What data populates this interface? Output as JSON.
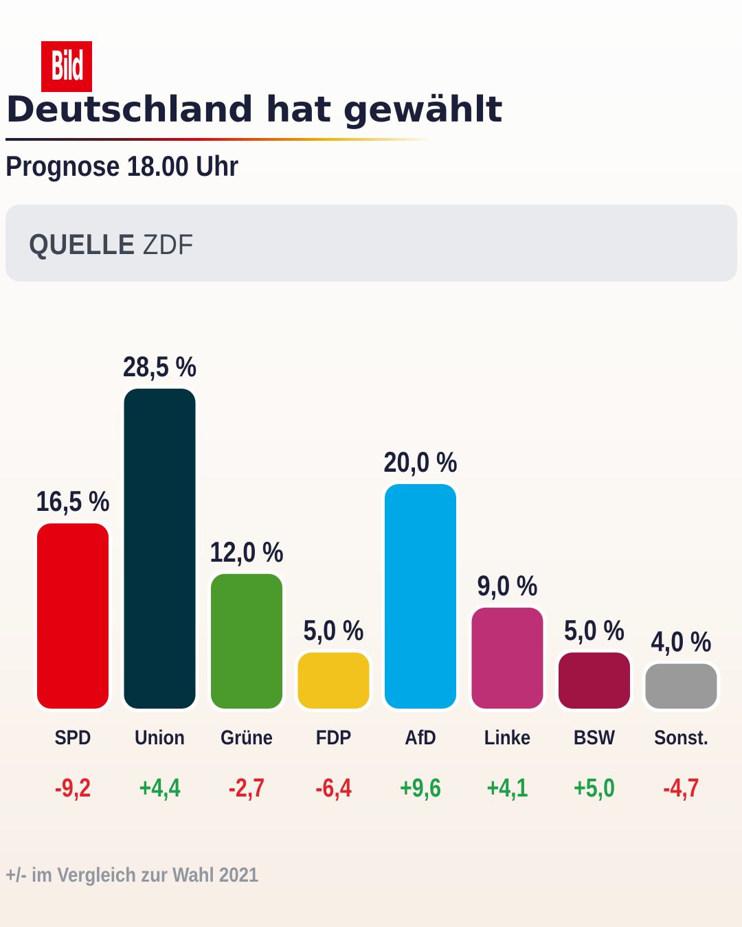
{
  "brand": {
    "logo_text": "Bild",
    "logo_color": "#e3000f"
  },
  "header": {
    "title": "Deutschland hat gewählt",
    "subtitle": "Prognose 18.00 Uhr"
  },
  "source": {
    "label": "QUELLE",
    "value": "ZDF"
  },
  "chart_data": {
    "type": "bar",
    "title": "Deutschland hat gewählt",
    "subtitle": "Prognose 18.00 Uhr",
    "xlabel": "",
    "ylabel": "",
    "ylim": [
      0,
      28.5
    ],
    "grid": false,
    "categories": [
      "SPD",
      "Union",
      "Grüne",
      "FDP",
      "AfD",
      "Linke",
      "BSW",
      "Sonst."
    ],
    "values": [
      16.5,
      28.5,
      12.0,
      5.0,
      20.0,
      9.0,
      5.0,
      4.0
    ],
    "value_labels": [
      "16,5 %",
      "28,5 %",
      "12,0 %",
      "5,0 %",
      "20,0 %",
      "9,0 %",
      "5,0 %",
      "4,0 %"
    ],
    "changes": [
      -9.2,
      4.4,
      -2.7,
      -6.4,
      9.6,
      4.1,
      5.0,
      -4.7
    ],
    "change_labels": [
      "-9,2",
      "+4,4",
      "-2,7",
      "-6,4",
      "+9,6",
      "+4,1",
      "+5,0",
      "-4,7"
    ],
    "colors": [
      "#e3000f",
      "#023140",
      "#4a9a2c",
      "#f2c31c",
      "#00a8e8",
      "#bd3075",
      "#a01444",
      "#9a9a9a"
    ],
    "change_colors": {
      "positive": "#1e9f4a",
      "negative": "#e0242e"
    }
  },
  "footnote": "+/- im Vergleich zur Wahl 2021"
}
